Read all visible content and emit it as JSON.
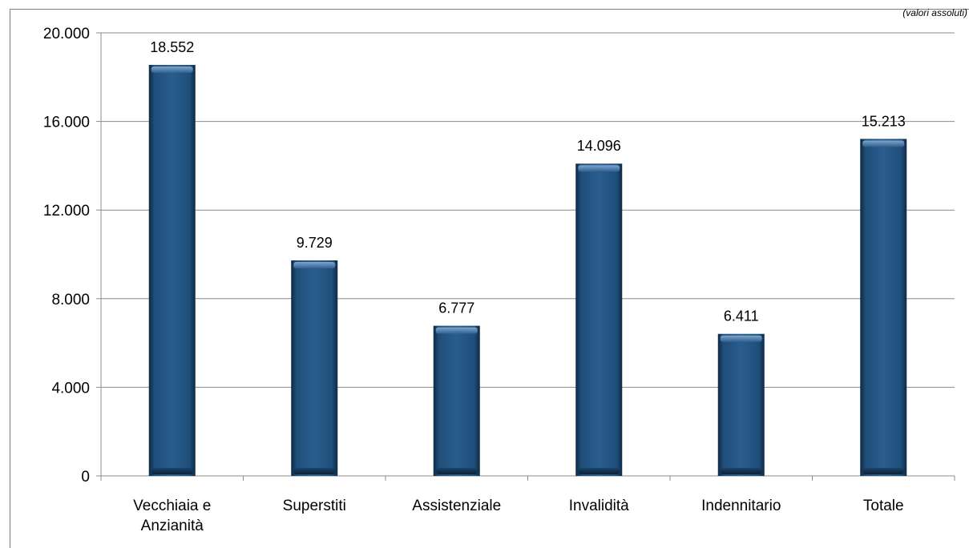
{
  "header": {
    "unit_note": "(valori assoluti)"
  },
  "chart_data": {
    "type": "bar",
    "categories": [
      "Vecchiaia e Anzianità",
      "Superstiti",
      "Assistenziale",
      "Invalidità",
      "Indennitario",
      "Totale"
    ],
    "category_lines": [
      [
        "Vecchiaia e",
        "Anzianità"
      ],
      [
        "Superstiti"
      ],
      [
        "Assistenziale"
      ],
      [
        "Invalidità"
      ],
      [
        "Indennitario"
      ],
      [
        "Totale"
      ]
    ],
    "values": [
      18552,
      9729,
      6777,
      14096,
      6411,
      15213
    ],
    "value_labels": [
      "18.552",
      "9.729",
      "6.777",
      "14.096",
      "6.411",
      "15.213"
    ],
    "yticks": [
      0,
      4000,
      8000,
      12000,
      16000,
      20000
    ],
    "ytick_labels": [
      "0",
      "4.000",
      "8.000",
      "12.000",
      "16.000",
      "20.000"
    ],
    "ylim": [
      0,
      20000
    ],
    "grid": true,
    "bar_color": "#1f4e79",
    "legend": "none"
  }
}
